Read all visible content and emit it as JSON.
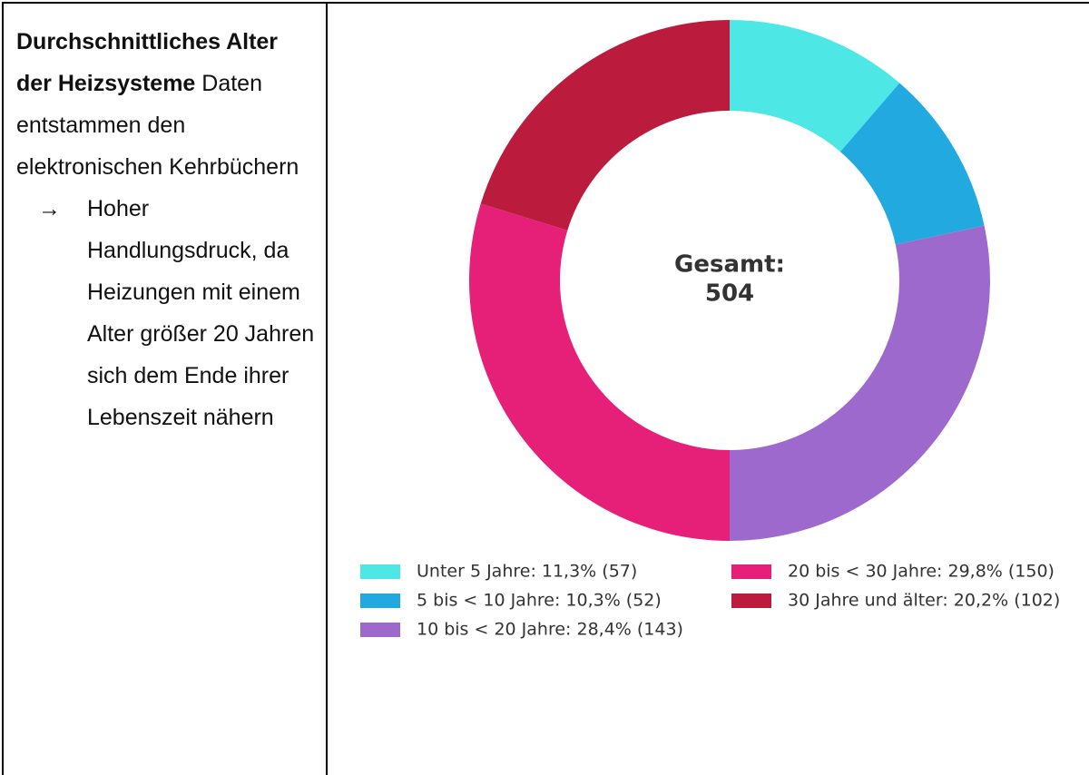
{
  "text": {
    "title": "Durchschnittliches Alter der Heizsysteme",
    "description": "Daten entstammen den elektronischen Kehrbüchern",
    "bullet": "→",
    "point": "Hoher Handlungsdruck, da Heizungen mit einem Alter größer 20 Jahren sich dem Ende ihrer Lebenszeit nähern"
  },
  "chart_data": {
    "type": "donut",
    "center_label": "Gesamt:",
    "total": 504,
    "categories": [
      "Unter 5 Jahre: 11,3% (57)",
      "5 bis < 10 Jahre: 10,3% (52)",
      "10 bis < 20 Jahre: 28,4% (143)",
      "20 bis < 30 Jahre: 29,8% (150)",
      "30 Jahre und älter: 20,2% (102)"
    ],
    "values": [
      57,
      52,
      143,
      150,
      102
    ],
    "colors": [
      "#4de8e6",
      "#22a9e0",
      "#9e69cc",
      "#e61f78",
      "#bb1c3e"
    ]
  }
}
